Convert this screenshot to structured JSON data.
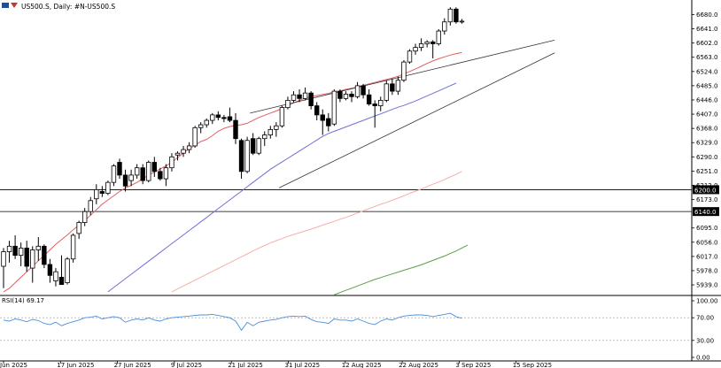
{
  "chart_data": {
    "type": "candlestick",
    "title": "US500.S, Daily: #N-US500.S",
    "price_axis": {
      "range": [
        5910,
        6720
      ],
      "ticks": [
        "6680.0",
        "6641.0",
        "6602.0",
        "6563.0",
        "6524.0",
        "6485.0",
        "6446.0",
        "6407.0",
        "6368.0",
        "6329.0",
        "6290.0",
        "6251.0",
        "6212.0",
        "6173.0",
        "6095.0",
        "6056.0",
        "6017.0",
        "5978.0",
        "5939.0"
      ]
    },
    "x_axis": {
      "tick_labels": [
        "Jun 2025",
        "17 Jun 2025",
        "27 Jun 2025",
        "9 Jul 2025",
        "21 Jul 2025",
        "31 Jul 2025",
        "12 Aug 2025",
        "22 Aug 2025",
        "3 Sep 2025",
        "15 Sep 2025"
      ]
    },
    "horizontal_levels": [
      {
        "value": 6200.0,
        "label": "6200.0"
      },
      {
        "value": 6140.0,
        "label": "6140.0"
      }
    ],
    "candles": [
      {
        "o": 5990,
        "h": 6040,
        "l": 5930,
        "c": 6030
      },
      {
        "o": 6030,
        "h": 6060,
        "l": 6000,
        "c": 6045
      },
      {
        "o": 6045,
        "h": 6075,
        "l": 6010,
        "c": 6020
      },
      {
        "o": 6020,
        "h": 6055,
        "l": 5990,
        "c": 6040
      },
      {
        "o": 6040,
        "h": 6060,
        "l": 5975,
        "c": 5990
      },
      {
        "o": 5985,
        "h": 6045,
        "l": 5945,
        "c": 6035
      },
      {
        "o": 6035,
        "h": 6070,
        "l": 6005,
        "c": 6045
      },
      {
        "o": 6045,
        "h": 6050,
        "l": 5985,
        "c": 5995
      },
      {
        "o": 5995,
        "h": 6010,
        "l": 5945,
        "c": 5965
      },
      {
        "o": 5950,
        "h": 5985,
        "l": 5935,
        "c": 5975
      },
      {
        "o": 5960,
        "h": 6020,
        "l": 5940,
        "c": 5940
      },
      {
        "o": 5945,
        "h": 6015,
        "l": 5940,
        "c": 6010
      },
      {
        "o": 6010,
        "h": 6080,
        "l": 6000,
        "c": 6075
      },
      {
        "o": 6080,
        "h": 6115,
        "l": 6065,
        "c": 6110
      },
      {
        "o": 6110,
        "h": 6150,
        "l": 6100,
        "c": 6140
      },
      {
        "o": 6140,
        "h": 6180,
        "l": 6130,
        "c": 6170
      },
      {
        "o": 6175,
        "h": 6215,
        "l": 6160,
        "c": 6200
      },
      {
        "o": 6195,
        "h": 6210,
        "l": 6180,
        "c": 6190
      },
      {
        "o": 6190,
        "h": 6225,
        "l": 6185,
        "c": 6220
      },
      {
        "o": 6220,
        "h": 6270,
        "l": 6210,
        "c": 6265
      },
      {
        "o": 6275,
        "h": 6285,
        "l": 6230,
        "c": 6240
      },
      {
        "o": 6240,
        "h": 6255,
        "l": 6195,
        "c": 6210
      },
      {
        "o": 6225,
        "h": 6255,
        "l": 6210,
        "c": 6240
      },
      {
        "o": 6240,
        "h": 6270,
        "l": 6230,
        "c": 6260
      },
      {
        "o": 6260,
        "h": 6270,
        "l": 6215,
        "c": 6225
      },
      {
        "o": 6225,
        "h": 6280,
        "l": 6220,
        "c": 6275
      },
      {
        "o": 6275,
        "h": 6290,
        "l": 6235,
        "c": 6250
      },
      {
        "o": 6250,
        "h": 6260,
        "l": 6225,
        "c": 6230
      },
      {
        "o": 6230,
        "h": 6270,
        "l": 6210,
        "c": 6260
      },
      {
        "o": 6260,
        "h": 6300,
        "l": 6250,
        "c": 6290
      },
      {
        "o": 6295,
        "h": 6305,
        "l": 6280,
        "c": 6300
      },
      {
        "o": 6300,
        "h": 6320,
        "l": 6290,
        "c": 6310
      },
      {
        "o": 6310,
        "h": 6330,
        "l": 6300,
        "c": 6320
      },
      {
        "o": 6320,
        "h": 6375,
        "l": 6315,
        "c": 6370
      },
      {
        "o": 6370,
        "h": 6385,
        "l": 6355,
        "c": 6378
      },
      {
        "o": 6378,
        "h": 6395,
        "l": 6370,
        "c": 6390
      },
      {
        "o": 6390,
        "h": 6410,
        "l": 6380,
        "c": 6405
      },
      {
        "o": 6405,
        "h": 6415,
        "l": 6390,
        "c": 6398
      },
      {
        "o": 6398,
        "h": 6405,
        "l": 6385,
        "c": 6395
      },
      {
        "o": 6400,
        "h": 6425,
        "l": 6385,
        "c": 6390
      },
      {
        "o": 6390,
        "h": 6410,
        "l": 6325,
        "c": 6340
      },
      {
        "o": 6335,
        "h": 6340,
        "l": 6230,
        "c": 6250
      },
      {
        "o": 6250,
        "h": 6345,
        "l": 6245,
        "c": 6335
      },
      {
        "o": 6340,
        "h": 6355,
        "l": 6295,
        "c": 6300
      },
      {
        "o": 6300,
        "h": 6345,
        "l": 6295,
        "c": 6340
      },
      {
        "o": 6340,
        "h": 6360,
        "l": 6320,
        "c": 6350
      },
      {
        "o": 6350,
        "h": 6375,
        "l": 6340,
        "c": 6365
      },
      {
        "o": 6365,
        "h": 6385,
        "l": 6345,
        "c": 6375
      },
      {
        "o": 6375,
        "h": 6430,
        "l": 6370,
        "c": 6425
      },
      {
        "o": 6425,
        "h": 6455,
        "l": 6420,
        "c": 6445
      },
      {
        "o": 6445,
        "h": 6470,
        "l": 6440,
        "c": 6460
      },
      {
        "o": 6460,
        "h": 6475,
        "l": 6440,
        "c": 6450
      },
      {
        "o": 6450,
        "h": 6480,
        "l": 6445,
        "c": 6465
      },
      {
        "o": 6465,
        "h": 6470,
        "l": 6420,
        "c": 6430
      },
      {
        "o": 6430,
        "h": 6440,
        "l": 6390,
        "c": 6405
      },
      {
        "o": 6405,
        "h": 6420,
        "l": 6350,
        "c": 6390
      },
      {
        "o": 6395,
        "h": 6410,
        "l": 6360,
        "c": 6375
      },
      {
        "o": 6380,
        "h": 6475,
        "l": 6375,
        "c": 6470
      },
      {
        "o": 6470,
        "h": 6475,
        "l": 6440,
        "c": 6450
      },
      {
        "o": 6450,
        "h": 6470,
        "l": 6445,
        "c": 6462
      },
      {
        "o": 6462,
        "h": 6470,
        "l": 6440,
        "c": 6455
      },
      {
        "o": 6455,
        "h": 6495,
        "l": 6450,
        "c": 6485
      },
      {
        "o": 6485,
        "h": 6490,
        "l": 6450,
        "c": 6460
      },
      {
        "o": 6460,
        "h": 6475,
        "l": 6430,
        "c": 6435
      },
      {
        "o": 6435,
        "h": 6445,
        "l": 6370,
        "c": 6430
      },
      {
        "o": 6430,
        "h": 6455,
        "l": 6415,
        "c": 6445
      },
      {
        "o": 6445,
        "h": 6500,
        "l": 6440,
        "c": 6490
      },
      {
        "o": 6490,
        "h": 6505,
        "l": 6460,
        "c": 6470
      },
      {
        "o": 6470,
        "h": 6510,
        "l": 6460,
        "c": 6500
      },
      {
        "o": 6500,
        "h": 6555,
        "l": 6495,
        "c": 6550
      },
      {
        "o": 6550,
        "h": 6585,
        "l": 6545,
        "c": 6580
      },
      {
        "o": 6580,
        "h": 6600,
        "l": 6570,
        "c": 6590
      },
      {
        "o": 6590,
        "h": 6615,
        "l": 6580,
        "c": 6600
      },
      {
        "o": 6600,
        "h": 6610,
        "l": 6590,
        "c": 6605
      },
      {
        "o": 6605,
        "h": 6610,
        "l": 6560,
        "c": 6600
      },
      {
        "o": 6600,
        "h": 6640,
        "l": 6595,
        "c": 6635
      },
      {
        "o": 6635,
        "h": 6670,
        "l": 6625,
        "c": 6660
      },
      {
        "o": 6660,
        "h": 6700,
        "l": 6650,
        "c": 6695
      },
      {
        "o": 6695,
        "h": 6700,
        "l": 6655,
        "c": 6660
      },
      {
        "o": 6660,
        "h": 6668,
        "l": 6655,
        "c": 6662
      }
    ],
    "trendlines": [
      {
        "x1": 42.5,
        "y1": 6410,
        "x2": 95,
        "y2": 6610
      },
      {
        "x1": 47.5,
        "y1": 6205,
        "x2": 95,
        "y2": 6575
      }
    ],
    "moving_averages": [
      {
        "color": "#e06060",
        "start": 0,
        "points": [
          5920,
          5930,
          5945,
          5960,
          5975,
          5990,
          6005,
          6020,
          6035,
          6050,
          6063,
          6076,
          6090,
          6103,
          6116,
          6130,
          6145,
          6160,
          6172,
          6183,
          6195,
          6205,
          6212,
          6220,
          6230,
          6240,
          6248,
          6257,
          6265,
          6275,
          6288,
          6300,
          6312,
          6322,
          6332,
          6338,
          6348,
          6360,
          6368,
          6373,
          6376,
          6378,
          6382,
          6390,
          6398,
          6404,
          6410,
          6416,
          6422,
          6430,
          6438,
          6445,
          6451,
          6455,
          6458,
          6461,
          6464,
          6468,
          6471,
          6475,
          6478,
          6482,
          6486,
          6490,
          6494,
          6498,
          6502,
          6506,
          6511,
          6517,
          6524,
          6531,
          6538,
          6546,
          6553,
          6559,
          6564,
          6569,
          6573,
          6576
        ]
      },
      {
        "color": "#7070d8",
        "start": 18,
        "points": [
          5920,
          5932,
          5944,
          5956,
          5968,
          5980,
          5992,
          6004,
          6016,
          6028,
          6040,
          6052,
          6064,
          6076,
          6088,
          6100,
          6112,
          6124,
          6136,
          6148,
          6160,
          6172,
          6184,
          6196,
          6208,
          6220,
          6232,
          6244,
          6256,
          6266,
          6276,
          6286,
          6296,
          6306,
          6316,
          6326,
          6336,
          6346,
          6354,
          6360,
          6366,
          6372,
          6378,
          6384,
          6390,
          6396,
          6402,
          6408,
          6414,
          6420,
          6426,
          6431,
          6437,
          6443,
          6450,
          6457,
          6464,
          6471,
          6478,
          6485,
          6492
        ]
      },
      {
        "color": "#f4b0a8",
        "start": 29,
        "points": [
          5920,
          5928,
          5936,
          5944,
          5952,
          5960,
          5968,
          5976,
          5984,
          5992,
          6000,
          6008,
          6016,
          6024,
          6032,
          6040,
          6047,
          6054,
          6060,
          6066,
          6072,
          6077,
          6082,
          6087,
          6092,
          6097,
          6103,
          6108,
          6113,
          6119,
          6124,
          6130,
          6136,
          6142,
          6148,
          6154,
          6160,
          6165,
          6171,
          6177,
          6183,
          6190,
          6196,
          6202,
          6208,
          6215,
          6221,
          6228,
          6235,
          6242,
          6250
        ]
      },
      {
        "color": "#5c9e4a",
        "start": 57,
        "points": [
          5912,
          5918,
          5924,
          5930,
          5936,
          5942,
          5948,
          5954,
          5959,
          5964,
          5969,
          5974,
          5979,
          5984,
          5989,
          5994,
          6000,
          6006,
          6012,
          6018,
          6025,
          6032,
          6040,
          6048
        ]
      }
    ],
    "rsi": {
      "label": "RSI(14) 69.17",
      "ticks": [
        "100.00",
        "70.00",
        "30.00",
        "0.00"
      ],
      "levels": [
        70,
        30
      ],
      "values": [
        66,
        64,
        68,
        66,
        63,
        67,
        65,
        60,
        58,
        62,
        56,
        60,
        63,
        66,
        70,
        71,
        73,
        68,
        70,
        72,
        70,
        62,
        66,
        68,
        66,
        70,
        66,
        64,
        68,
        70,
        71,
        72,
        73,
        74,
        75,
        75,
        76,
        74,
        72,
        70,
        64,
        48,
        62,
        56,
        62,
        64,
        66,
        67,
        70,
        72,
        73,
        72,
        73,
        67,
        63,
        62,
        60,
        68,
        66,
        66,
        64,
        68,
        64,
        60,
        58,
        64,
        68,
        66,
        70,
        73,
        74,
        75,
        75,
        74,
        72,
        74,
        76,
        78,
        72,
        69
      ]
    }
  }
}
